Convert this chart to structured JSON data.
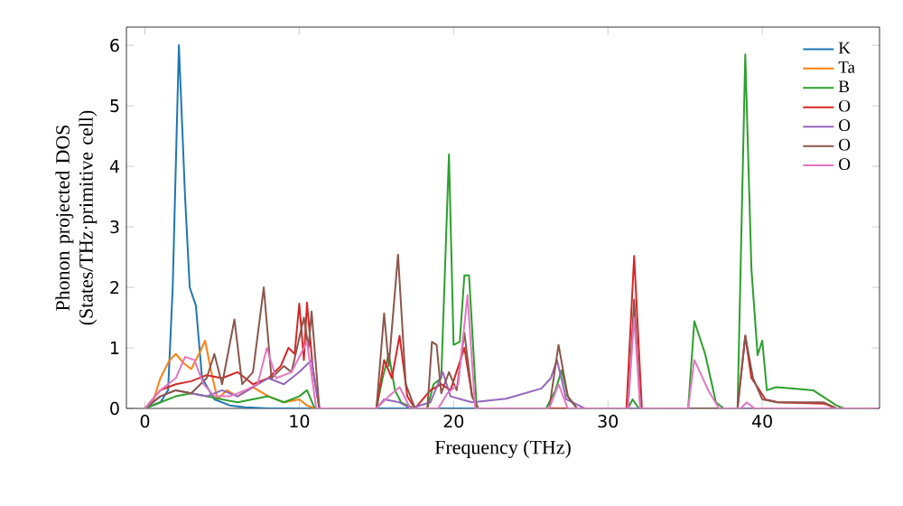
{
  "chart_data": {
    "type": "line",
    "xlabel": "Frequency (THz)",
    "ylabel": "Phonon projected DOS (States/THz·primitive cell)",
    "xlim": [
      -1.2,
      47.6
    ],
    "ylim": [
      0,
      6.3
    ],
    "xticks": [
      0,
      10,
      20,
      30,
      40
    ],
    "yticks": [
      0,
      1,
      2,
      3,
      4,
      5,
      6
    ],
    "legend": "top right",
    "series": [
      {
        "name": "K",
        "color": "#1f77b4",
        "x": [
          0,
          1,
          1.5,
          1.8,
          2.2,
          2.6,
          2.9,
          3.3,
          3.7,
          4.5,
          5.5,
          6.5,
          8,
          47.5
        ],
        "values": [
          0,
          0.1,
          0.3,
          2.0,
          6.0,
          3.5,
          2.0,
          1.7,
          0.5,
          0.15,
          0.05,
          0.02,
          0,
          0
        ]
      },
      {
        "name": "Ta",
        "color": "#ff7f0e",
        "x": [
          0,
          0.5,
          1,
          1.6,
          2.0,
          2.5,
          3,
          3.5,
          3.9,
          4.3,
          4.7,
          5.3,
          6,
          7,
          8,
          9,
          10,
          10.5,
          11
        ],
        "values": [
          0,
          0.1,
          0.5,
          0.8,
          0.9,
          0.75,
          0.65,
          0.9,
          1.12,
          0.6,
          0.15,
          0.3,
          0.2,
          0.35,
          0.2,
          0.1,
          0.15,
          0.05,
          0
        ]
      },
      {
        "name": "B",
        "color": "#2ca02c",
        "x": [
          0,
          1,
          2,
          3,
          4,
          5,
          6,
          7,
          8,
          9,
          10,
          10.5,
          11,
          15,
          15.4,
          15.8,
          16.2,
          16.6,
          17,
          17.5,
          18.3,
          18.7,
          19.2,
          19.7,
          20.0,
          20.4,
          20.7,
          21.0,
          21.5,
          26,
          26.6,
          27.0,
          27.4,
          28,
          31.3,
          31.6,
          32,
          35.2,
          35.6,
          36.3,
          37,
          37.5,
          38.4,
          38.9,
          39.3,
          39.7,
          40.0,
          40.3,
          40.9,
          42,
          43.3,
          44.8,
          45.3,
          47.5
        ],
        "values": [
          0,
          0.1,
          0.2,
          0.25,
          0.2,
          0.15,
          0.1,
          0.15,
          0.2,
          0.1,
          0.2,
          0.3,
          0,
          0,
          0.5,
          0.9,
          0.3,
          0.1,
          0.05,
          0,
          0,
          0.4,
          0.5,
          4.2,
          1.05,
          1.1,
          2.2,
          2.2,
          0,
          0,
          0.3,
          0.63,
          0.2,
          0,
          0,
          0.15,
          0,
          0,
          1.44,
          0.9,
          0.1,
          0,
          0,
          5.85,
          2.3,
          0.88,
          1.12,
          0.3,
          0.35,
          0.33,
          0.3,
          0.05,
          0,
          0
        ]
      },
      {
        "name": "O",
        "color": "#d62728",
        "x": [
          0,
          1,
          2,
          3,
          4,
          5,
          6,
          7,
          8,
          8.8,
          9.3,
          9.7,
          10.0,
          10.3,
          10.5,
          10.9,
          11.3,
          15,
          15.5,
          16.0,
          16.5,
          17,
          17.5,
          18.5,
          19.2,
          19.8,
          20.7,
          21.2,
          21.6,
          31.2,
          31.7,
          32.2,
          38.4,
          38.9,
          39.3,
          39.7,
          40.2,
          41,
          44,
          44.8,
          47.5
        ],
        "values": [
          0,
          0.3,
          0.4,
          0.45,
          0.55,
          0.5,
          0.6,
          0.4,
          0.5,
          0.7,
          1.0,
          0.9,
          1.73,
          0.8,
          1.75,
          0.6,
          0,
          0,
          0.8,
          0.5,
          1.2,
          0.2,
          0,
          0.3,
          0.4,
          0.3,
          1.0,
          0.2,
          0,
          0,
          2.52,
          0,
          0,
          1.2,
          0.5,
          0.35,
          0.15,
          0.1,
          0.08,
          0,
          0
        ]
      },
      {
        "name": "O",
        "color": "#9467bd",
        "x": [
          0,
          1,
          2,
          3,
          4,
          5,
          6,
          7,
          8,
          9,
          10,
          10.8,
          11.3,
          15,
          15.5,
          16.5,
          17.2,
          18.5,
          19.3,
          19.8,
          20.5,
          21.2,
          23.4,
          25.7,
          26.3,
          26.7,
          27.3,
          28.5,
          47.5
        ],
        "values": [
          0,
          0.2,
          0.3,
          0.25,
          0.2,
          0.3,
          0.2,
          0.35,
          0.5,
          0.4,
          0.6,
          0.8,
          0,
          0,
          0.15,
          0.1,
          0,
          0.1,
          0.6,
          0.2,
          0.15,
          0.1,
          0.16,
          0.33,
          0.5,
          0.8,
          0.15,
          0,
          0
        ]
      },
      {
        "name": "O",
        "color": "#8c564b",
        "x": [
          0,
          1,
          2,
          3,
          4,
          4.5,
          5,
          5.8,
          6.3,
          7,
          7.7,
          8.2,
          9,
          9.5,
          10.3,
          10.6,
          10.8,
          11.3,
          15,
          15.5,
          15.8,
          16.4,
          16.9,
          17.5,
          18.3,
          18.6,
          18.9,
          19.2,
          19.7,
          20.2,
          20.7,
          21.2,
          21.6,
          26.2,
          26.8,
          27.4,
          28,
          31.3,
          31.7,
          32.1,
          38.4,
          38.9,
          39.4,
          40,
          41,
          44,
          44.8,
          47.5
        ],
        "values": [
          0,
          0.2,
          0.3,
          0.25,
          0.5,
          0.9,
          0.4,
          1.47,
          0.4,
          0.6,
          2.0,
          0.5,
          0.7,
          0.6,
          1.5,
          1.0,
          1.6,
          0,
          0,
          1.57,
          0.7,
          2.54,
          0.4,
          0,
          0,
          1.1,
          1.05,
          0.25,
          0.6,
          0.3,
          1.25,
          0.2,
          0,
          0,
          1.05,
          0.2,
          0,
          0,
          1.8,
          0,
          0,
          1.2,
          0.5,
          0.15,
          0.1,
          0.1,
          0,
          0
        ]
      },
      {
        "name": "O",
        "color": "#e377c2",
        "x": [
          0,
          1,
          2,
          2.6,
          3.2,
          3.8,
          4.5,
          5.5,
          6.5,
          7.3,
          7.9,
          8.5,
          9.5,
          10.5,
          11.1,
          15,
          15.8,
          16.5,
          17.2,
          19,
          19.6,
          20.3,
          20.9,
          21.4,
          26.2,
          26.8,
          27.4,
          31.3,
          31.7,
          32.1,
          35.2,
          35.6,
          36.5,
          37.2,
          38.6,
          39,
          39.5,
          47.5
        ],
        "values": [
          0,
          0.3,
          0.5,
          0.85,
          0.8,
          0.4,
          0.2,
          0.2,
          0.3,
          0.4,
          1.0,
          0.5,
          0.6,
          1.1,
          0,
          0,
          0.2,
          0.35,
          0,
          0,
          0.25,
          0.4,
          1.87,
          0,
          0,
          0.4,
          0,
          0,
          1.5,
          0,
          0,
          0.8,
          0.3,
          0,
          0,
          0.1,
          0,
          0
        ]
      }
    ]
  }
}
